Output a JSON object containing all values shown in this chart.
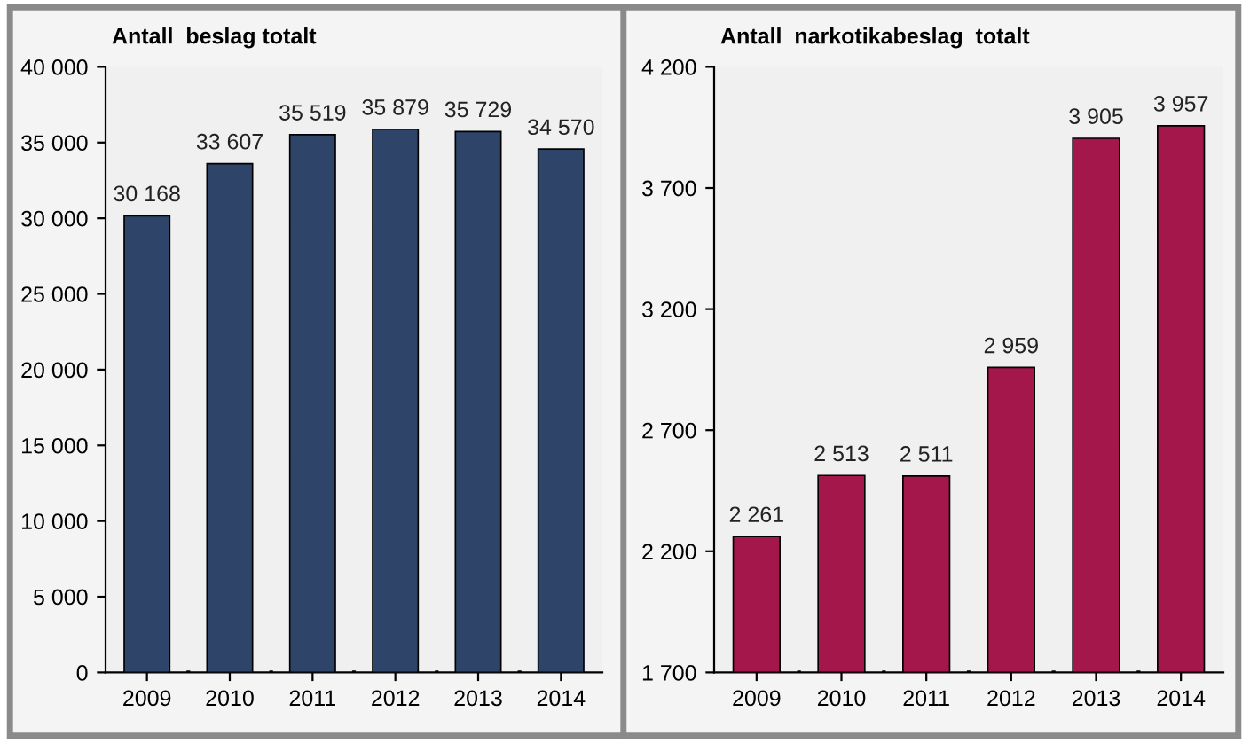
{
  "chart_data": [
    {
      "type": "bar",
      "title": "Antall  beslag totalt",
      "categories": [
        "2009",
        "2010",
        "2011",
        "2012",
        "2013",
        "2014"
      ],
      "values": [
        30168,
        33607,
        35519,
        35879,
        35729,
        34570
      ],
      "color": "#2e4468",
      "value_labels": [
        "30 168",
        "33 607",
        "35 519",
        "35 879",
        "35 729",
        "34 570"
      ],
      "ylim": [
        0,
        40000
      ],
      "yticks": [
        {
          "value": 0,
          "label": "0"
        },
        {
          "value": 5000,
          "label": "5 000"
        },
        {
          "value": 10000,
          "label": "10 000"
        },
        {
          "value": 15000,
          "label": "15 000"
        },
        {
          "value": 20000,
          "label": "20 000"
        },
        {
          "value": 25000,
          "label": "25 000"
        },
        {
          "value": 30000,
          "label": "30 000"
        },
        {
          "value": 35000,
          "label": "35 000"
        },
        {
          "value": 40000,
          "label": "40 000"
        }
      ],
      "grid": false
    },
    {
      "type": "bar",
      "title": "Antall  narkotikabeslag  totalt",
      "categories": [
        "2009",
        "2010",
        "2011",
        "2012",
        "2013",
        "2014"
      ],
      "values": [
        2261,
        2513,
        2511,
        2959,
        3905,
        3957
      ],
      "color": "#a3174a",
      "value_labels": [
        "2 261",
        "2 513",
        "2 511",
        "2 959",
        "3 905",
        "3 957"
      ],
      "ylim": [
        1700,
        4200
      ],
      "yticks": [
        {
          "value": 1700,
          "label": "1 700"
        },
        {
          "value": 2200,
          "label": "2 200"
        },
        {
          "value": 2700,
          "label": "2 700"
        },
        {
          "value": 3200,
          "label": "3 200"
        },
        {
          "value": 3700,
          "label": "3 700"
        },
        {
          "value": 4200,
          "label": "4 200"
        }
      ],
      "grid": false
    }
  ]
}
